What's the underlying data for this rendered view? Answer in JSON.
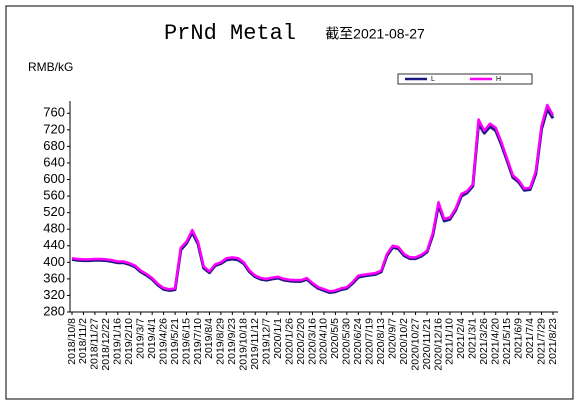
{
  "chart_data": {
    "type": "line",
    "title": "PrNd Metal",
    "subtitle": "截至2021-08-27",
    "y_label": "RMB/kG",
    "categories": [
      "2018/10/8",
      null,
      "2018/11/2",
      null,
      "2018/11/27",
      null,
      "2018/12/22",
      null,
      "2019/1/16",
      null,
      "2019/2/10",
      null,
      "2019/3/7",
      null,
      "2019/4/1",
      null,
      "2019/4/26",
      null,
      "2019/5/21",
      null,
      "2019/6/15",
      null,
      "2019/7/10",
      null,
      "2019/8/4",
      null,
      "2019/8/29",
      null,
      "2019/9/23",
      null,
      "2019/10/18",
      null,
      "2019/11/12",
      null,
      "2019/12/7",
      null,
      "2020/1/1",
      null,
      "2020/1/26",
      null,
      "2020/2/20",
      null,
      "2020/3/16",
      null,
      "2020/4/10",
      null,
      "2020/5/5",
      null,
      "2020/5/30",
      null,
      "2020/6/24",
      null,
      "2020/7/19",
      null,
      "2020/8/13",
      null,
      "2020/9/7",
      null,
      "2020/10/2",
      null,
      "2020/10/27",
      null,
      "2020/11/21",
      null,
      "2020/12/16",
      null,
      "2021/1/10",
      null,
      "2021/2/4",
      null,
      "2021/3/1",
      null,
      "2021/3/26",
      null,
      "2021/4/20",
      null,
      "2021/5/15",
      null,
      "2021/6/9",
      null,
      "2021/7/4",
      null,
      "2021/7/29",
      null,
      "2021/8/23"
    ],
    "series": [
      {
        "name": "L",
        "color": "#1a1a80",
        "values": [
          407,
          405,
          404,
          404,
          405,
          405,
          404,
          402,
          399,
          399,
          395,
          389,
          377,
          369,
          359,
          345,
          335,
          332,
          334,
          430,
          446,
          472,
          445,
          386,
          375,
          392,
          397,
          406,
          408,
          406,
          397,
          377,
          365,
          359,
          357,
          360,
          362,
          357,
          355,
          354,
          354,
          359,
          347,
          337,
          332,
          327,
          329,
          334,
          337,
          349,
          364,
          367,
          369,
          371,
          377,
          416,
          436,
          433,
          416,
          409,
          409,
          415,
          425,
          465,
          538,
          500,
          504,
          526,
          560,
          568,
          584,
          735,
          712,
          728,
          718,
          684,
          645,
          605,
          594,
          574,
          576,
          614,
          722,
          770,
          748
        ]
      },
      {
        "name": "H",
        "color": "#ff00ff",
        "values": [
          410,
          408,
          407,
          407,
          408,
          408,
          407,
          405,
          402,
          402,
          398,
          392,
          380,
          372,
          362,
          348,
          338,
          335,
          337,
          435,
          450,
          478,
          450,
          390,
          378,
          395,
          400,
          410,
          412,
          410,
          400,
          380,
          368,
          362,
          360,
          363,
          365,
          360,
          358,
          357,
          357,
          362,
          350,
          340,
          335,
          330,
          332,
          337,
          340,
          352,
          368,
          370,
          372,
          374,
          380,
          420,
          440,
          437,
          420,
          412,
          412,
          418,
          428,
          470,
          545,
          505,
          508,
          530,
          565,
          572,
          588,
          745,
          718,
          735,
          725,
          690,
          650,
          610,
          598,
          578,
          580,
          620,
          730,
          780,
          755
        ]
      }
    ],
    "ylim": [
      280,
      780
    ],
    "yticks": [
      280,
      320,
      360,
      400,
      440,
      480,
      520,
      560,
      600,
      640,
      680,
      720,
      760
    ],
    "grid": false,
    "legend": "top-right"
  }
}
